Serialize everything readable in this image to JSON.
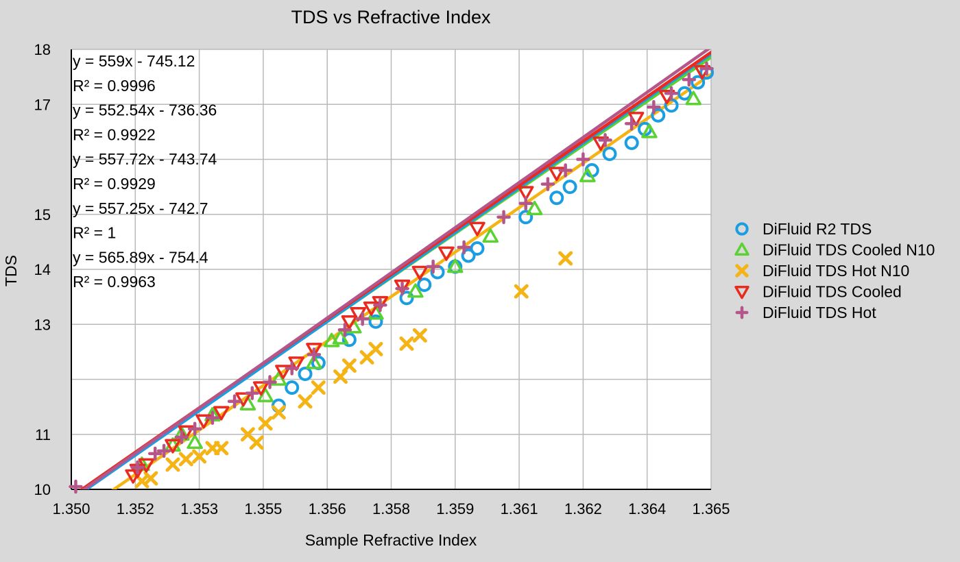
{
  "chart_data": {
    "type": "scatter",
    "title": "TDS vs Refractive Index",
    "xlabel": "Sample Refractive Index",
    "ylabel": "TDS",
    "xlim": [
      1.3505,
      1.365
    ],
    "ylim": [
      10,
      18
    ],
    "x_tick_values": [
      1.3505,
      1.35195,
      1.3534,
      1.35485,
      1.3563,
      1.35775,
      1.3592,
      1.36065,
      1.3621,
      1.36355,
      1.365
    ],
    "x_tick_labels": [
      "1.350",
      "1.352",
      "1.353",
      "1.355",
      "1.356",
      "1.358",
      "1.359",
      "1.361",
      "1.362",
      "1.364",
      "1.365"
    ],
    "y_tick_values": [
      10,
      11,
      12,
      13,
      14,
      15,
      16,
      17,
      18
    ],
    "y_tick_labels": [
      "10",
      "11",
      "",
      "13",
      "14",
      "15",
      "",
      "17",
      "18"
    ],
    "grid": true,
    "legend_position": "right",
    "annotations": [
      "y = 559x - 745.12",
      "R² = 0.9996",
      "y = 552.54x - 736.36",
      "R² = 0.9922",
      "y = 557.72x - 743.74",
      "R² = 0.9929",
      "y = 557.25x - 742.7",
      "R² = 1",
      "y = 565.89x - 754.4",
      "R² = 0.9963"
    ],
    "series": [
      {
        "name": "DiFluid R2 TDS",
        "marker": "circle",
        "color": "#1b9de2",
        "trendline": {
          "slope": 559,
          "intercept": -745.12
        },
        "x": [
          1.3552,
          1.3555,
          1.3558,
          1.3561,
          1.3568,
          1.3574,
          1.3581,
          1.3585,
          1.3588,
          1.3592,
          1.3595,
          1.3597,
          1.3608,
          1.3615,
          1.3618,
          1.3623,
          1.3627,
          1.3632,
          1.3635,
          1.3638,
          1.3641,
          1.3644,
          1.3647,
          1.3649
        ],
        "y": [
          11.52,
          11.85,
          12.1,
          12.3,
          12.72,
          13.05,
          13.48,
          13.72,
          13.95,
          14.05,
          14.25,
          14.38,
          14.95,
          15.3,
          15.5,
          15.8,
          16.1,
          16.3,
          16.55,
          16.8,
          16.98,
          17.2,
          17.4,
          17.58
        ]
      },
      {
        "name": "DiFluid TDS Cooled N10",
        "marker": "triangle-up",
        "color": "#5bd132",
        "trendline": {
          "slope": 552.54,
          "intercept": -736.36
        },
        "x": [
          1.3521,
          1.3528,
          1.353,
          1.3533,
          1.3537,
          1.3545,
          1.3549,
          1.3552,
          1.356,
          1.3564,
          1.3566,
          1.3569,
          1.3574,
          1.3583,
          1.3592,
          1.36,
          1.361,
          1.3622,
          1.3636,
          1.3646
        ],
        "y": [
          10.45,
          10.8,
          11.0,
          10.85,
          11.35,
          11.55,
          11.7,
          12.0,
          12.3,
          12.7,
          12.75,
          12.95,
          13.2,
          13.6,
          14.05,
          14.6,
          15.1,
          15.7,
          16.5,
          17.1
        ]
      },
      {
        "name": "DiFluid TDS Hot N10",
        "marker": "x",
        "color": "#f5b416",
        "trendline": {
          "slope": 557.72,
          "intercept": -743.74
        },
        "x": [
          1.3521,
          1.3523,
          1.3528,
          1.3531,
          1.3534,
          1.3537,
          1.3539,
          1.3545,
          1.3547,
          1.3549,
          1.3552,
          1.3558,
          1.3561,
          1.3566,
          1.3568,
          1.3572,
          1.3574,
          1.3581,
          1.3584,
          1.3607,
          1.3617
        ],
        "y": [
          10.15,
          10.2,
          10.45,
          10.55,
          10.6,
          10.75,
          10.75,
          11.0,
          10.85,
          11.2,
          11.4,
          11.6,
          11.85,
          12.05,
          12.25,
          12.4,
          12.55,
          12.65,
          12.8,
          13.6,
          14.2
        ]
      },
      {
        "name": "DiFluid TDS Cooled",
        "marker": "triangle-down",
        "color": "#e82a1f",
        "trendline": {
          "slope": 557.25,
          "intercept": -742.7
        },
        "x": [
          1.3519,
          1.352,
          1.3522,
          1.3528,
          1.3531,
          1.3535,
          1.3539,
          1.3544,
          1.3548,
          1.3553,
          1.3556,
          1.356,
          1.3568,
          1.357,
          1.3573,
          1.3575,
          1.358,
          1.3584,
          1.359,
          1.3597,
          1.3608,
          1.3615,
          1.3625,
          1.3633,
          1.364,
          1.3648
        ],
        "y": [
          10.25,
          10.35,
          10.45,
          10.8,
          11.05,
          11.25,
          11.4,
          11.65,
          11.85,
          12.15,
          12.3,
          12.55,
          13.05,
          13.2,
          13.3,
          13.4,
          13.7,
          13.95,
          14.3,
          14.75,
          15.4,
          15.75,
          16.3,
          16.75,
          17.15,
          17.6
        ]
      },
      {
        "name": "DiFluid TDS Hot",
        "marker": "plus",
        "color": "#b5568a",
        "trendline": {
          "slope": 565.89,
          "intercept": -754.4
        },
        "x": [
          1.3506,
          1.352,
          1.3524,
          1.3526,
          1.353,
          1.3533,
          1.3537,
          1.3542,
          1.3546,
          1.355,
          1.3555,
          1.356,
          1.3567,
          1.3571,
          1.3575,
          1.358,
          1.3587,
          1.3594,
          1.3603,
          1.3608,
          1.3613,
          1.3617,
          1.3621,
          1.3626,
          1.3632,
          1.3637,
          1.3641,
          1.3645,
          1.3649
        ],
        "y": [
          10.05,
          10.4,
          10.65,
          10.7,
          10.95,
          11.1,
          11.3,
          11.6,
          11.75,
          11.95,
          12.2,
          12.45,
          12.9,
          13.1,
          13.35,
          13.65,
          14.05,
          14.4,
          14.95,
          15.2,
          15.55,
          15.8,
          16.0,
          16.35,
          16.65,
          16.95,
          17.2,
          17.45,
          17.65
        ]
      }
    ]
  }
}
